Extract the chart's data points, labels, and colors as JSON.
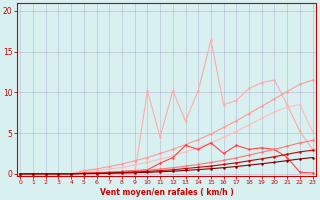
{
  "x": [
    0,
    1,
    2,
    3,
    4,
    5,
    6,
    7,
    8,
    9,
    10,
    11,
    12,
    13,
    14,
    15,
    16,
    17,
    18,
    19,
    20,
    21,
    22,
    23
  ],
  "line_spiky_light": [
    0,
    0,
    0,
    0,
    0,
    0,
    0,
    0,
    0,
    0,
    10.2,
    4.5,
    10.2,
    6.5,
    10.2,
    16.4,
    8.5,
    9.0,
    10.5,
    11.2,
    11.5,
    8.5,
    5.2,
    3.0
  ],
  "line_linear_upper": [
    0,
    0,
    0,
    0,
    0,
    0.4,
    0.6,
    0.9,
    1.2,
    1.6,
    2.0,
    2.5,
    3.0,
    3.6,
    4.2,
    4.9,
    5.7,
    6.5,
    7.4,
    8.3,
    9.2,
    10.1,
    11.0,
    11.5
  ],
  "line_linear_mid1": [
    0,
    0,
    0,
    0,
    0,
    0.25,
    0.4,
    0.6,
    0.8,
    1.1,
    1.4,
    1.8,
    2.2,
    2.7,
    3.2,
    3.8,
    4.5,
    5.2,
    6.0,
    6.8,
    7.6,
    8.2,
    8.5,
    5.2
  ],
  "line_spiky_mid": [
    0,
    0,
    0,
    0,
    0,
    0.1,
    0.15,
    0.2,
    0.3,
    0.4,
    0.5,
    1.3,
    2.0,
    3.5,
    3.0,
    3.8,
    2.5,
    3.5,
    3.0,
    3.2,
    3.0,
    2.0,
    0.2,
    0.1
  ],
  "line_linear_low1": [
    0,
    0,
    0,
    0,
    0,
    0.08,
    0.12,
    0.18,
    0.25,
    0.35,
    0.45,
    0.6,
    0.75,
    0.95,
    1.15,
    1.4,
    1.65,
    1.95,
    2.3,
    2.65,
    3.0,
    3.4,
    3.8,
    4.1
  ],
  "line_linear_low2": [
    0,
    0,
    0,
    0,
    0,
    0.05,
    0.08,
    0.12,
    0.17,
    0.23,
    0.3,
    0.4,
    0.5,
    0.65,
    0.8,
    0.95,
    1.15,
    1.35,
    1.6,
    1.85,
    2.1,
    2.4,
    2.7,
    2.9
  ],
  "line_dark_low": [
    0,
    0,
    0,
    0,
    0,
    0.02,
    0.04,
    0.07,
    0.1,
    0.14,
    0.18,
    0.25,
    0.32,
    0.42,
    0.52,
    0.63,
    0.76,
    0.9,
    1.07,
    1.24,
    1.42,
    1.62,
    1.83,
    2.0
  ],
  "color_spiky_light": "#ffaaaa",
  "color_linear_upper": "#ffaaaa",
  "color_linear_mid1": "#ffaaaa",
  "color_spiky_mid": "#ff4444",
  "color_linear_low1": "#ff7777",
  "color_linear_low2": "#cc0000",
  "color_dark_low": "#880000",
  "bg_color": "#d8f0f0",
  "grid_color": "#aaaacc",
  "spine_color": "#cc0000",
  "tick_color": "#cc0000",
  "xlabel": "Vent moyen/en rafales ( km/h )",
  "xlim": [
    0,
    23
  ],
  "ylim": [
    0,
    21
  ],
  "yticks": [
    0,
    5,
    10,
    15,
    20
  ],
  "xticks": [
    0,
    1,
    2,
    3,
    4,
    5,
    6,
    7,
    8,
    9,
    10,
    11,
    12,
    13,
    14,
    15,
    16,
    17,
    18,
    19,
    20,
    21,
    22,
    23
  ]
}
